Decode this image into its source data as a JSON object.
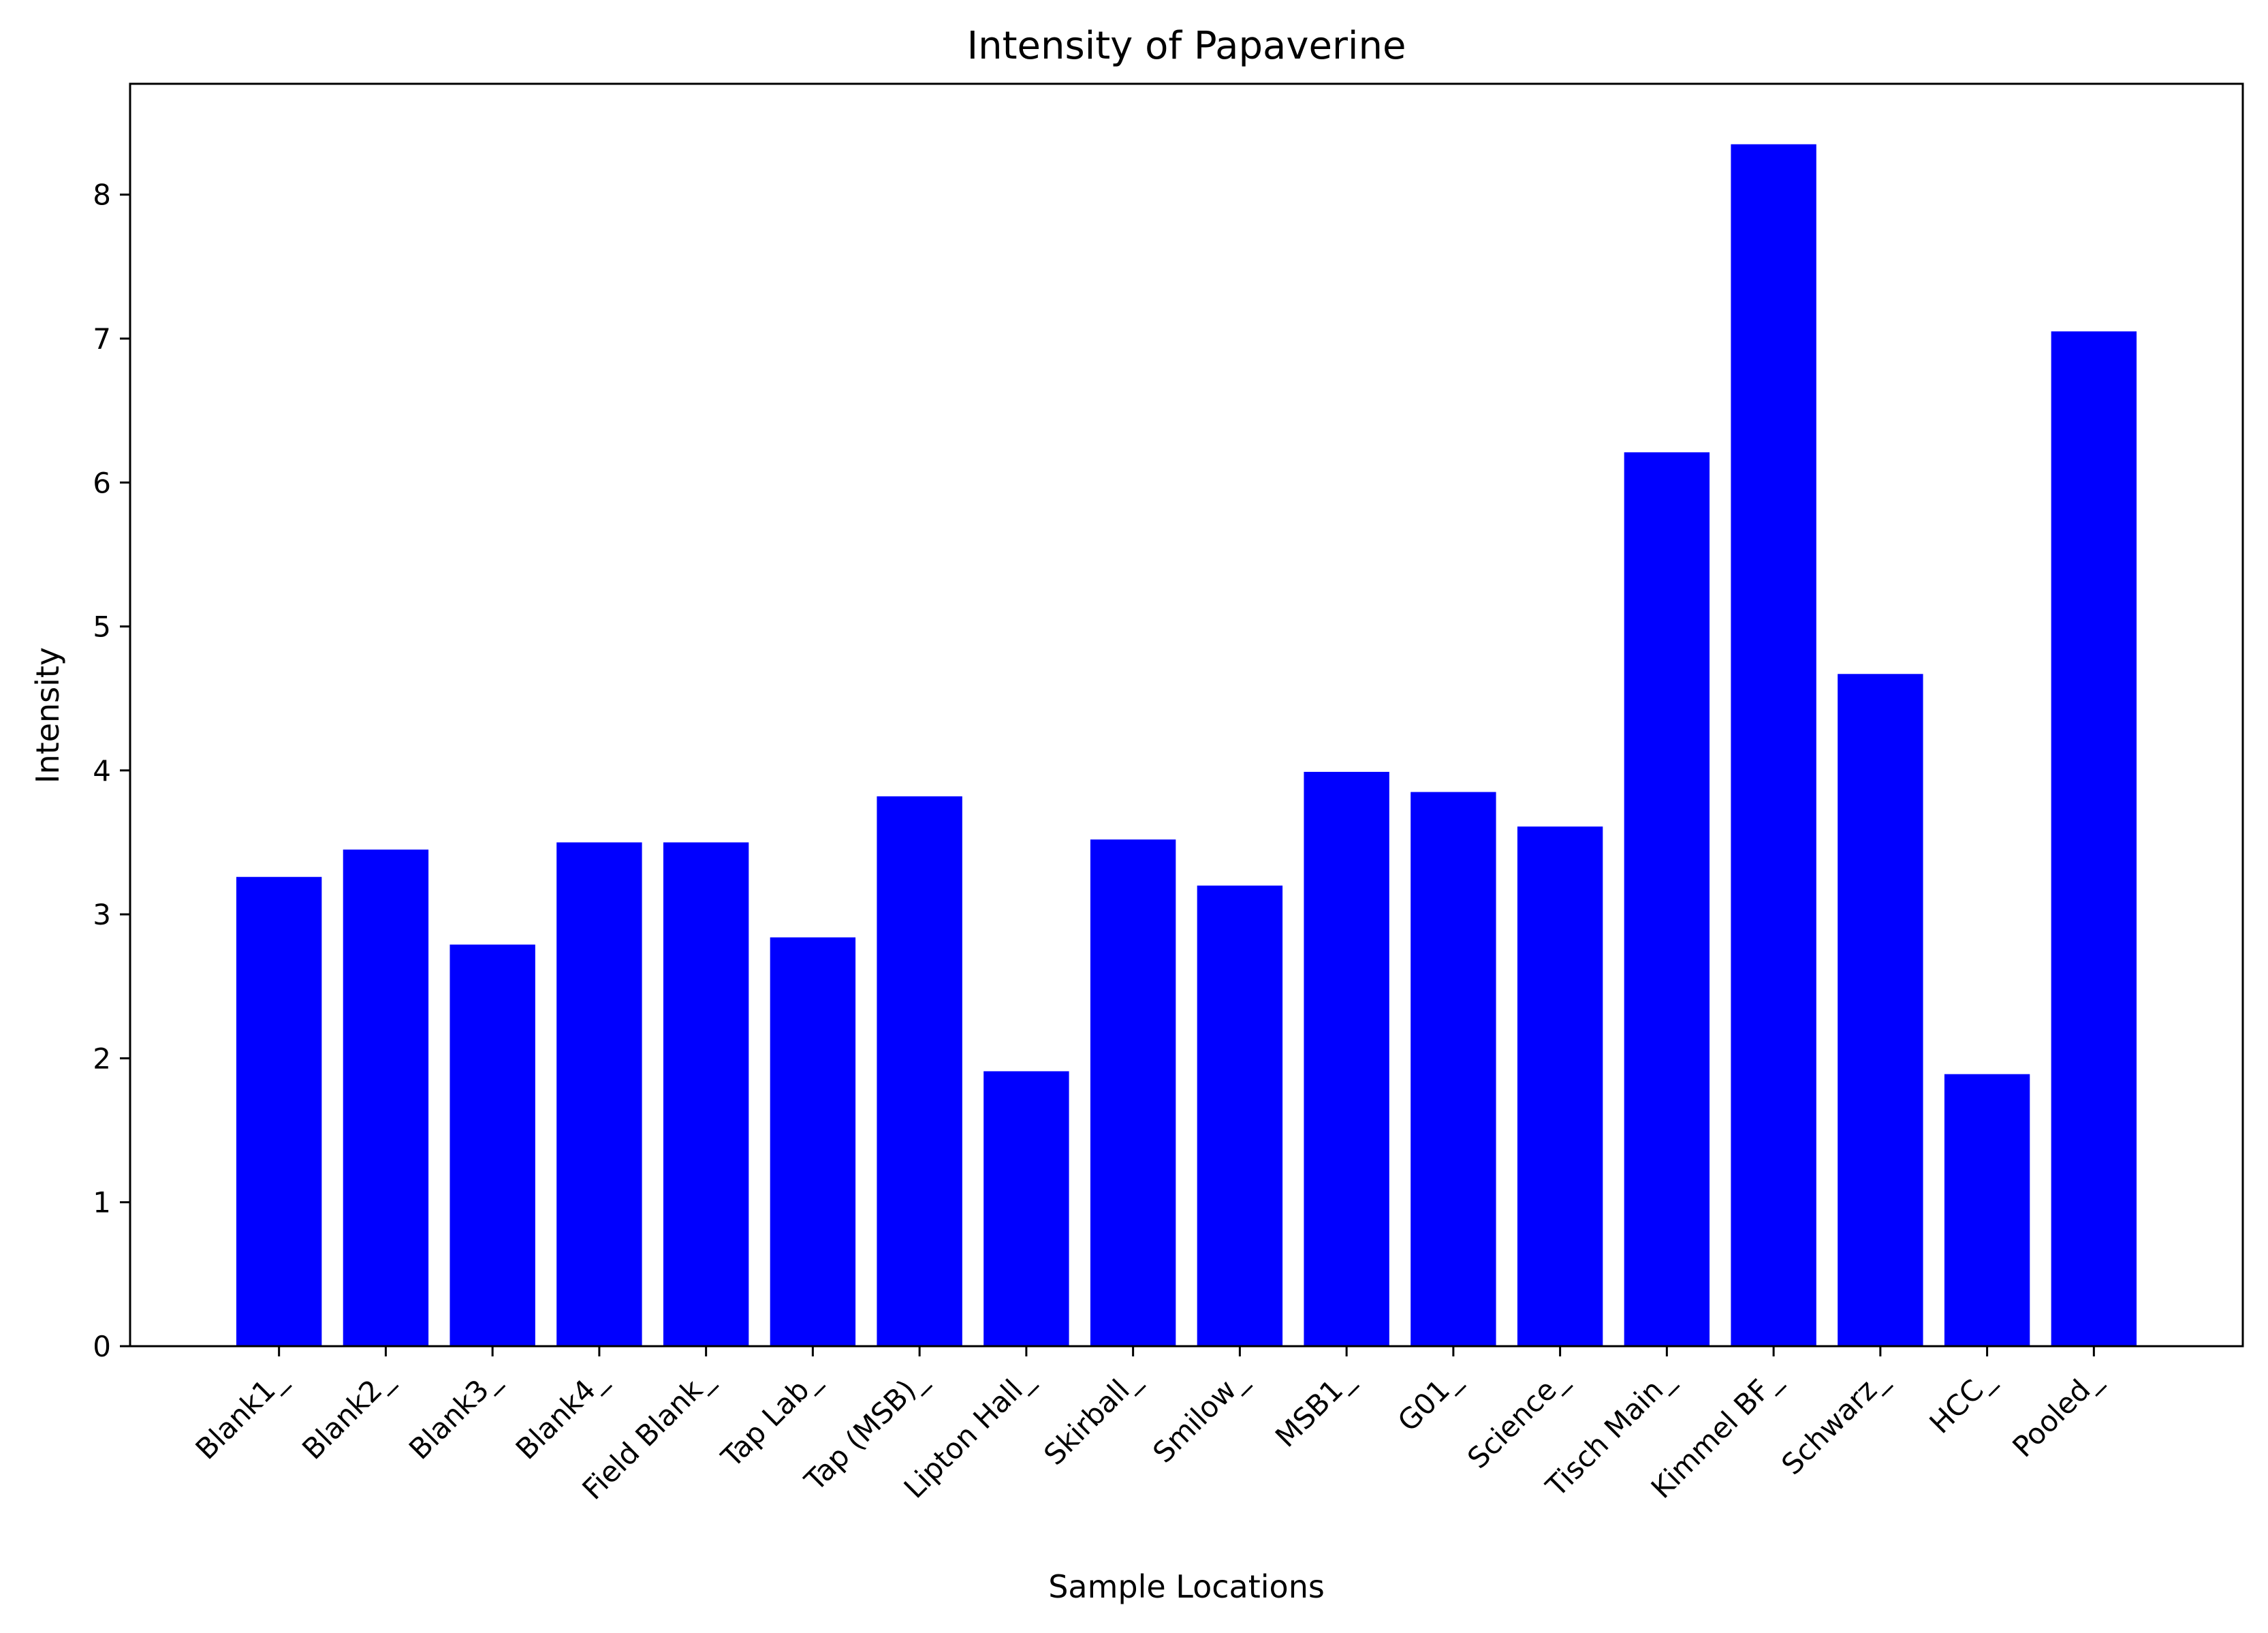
{
  "chart_data": {
    "type": "bar",
    "title": "Intensity of Papaverine",
    "xlabel": "Sample Locations",
    "ylabel": "Intensity",
    "categories": [
      "Blank1_",
      "Blank2_",
      "Blank3_",
      "Blank4_",
      "Field Blank_",
      "Tap Lab_",
      "Tap (MSB)_",
      "Lipton Hall_",
      "Skirball_",
      "Smilow_",
      "MSB1_",
      "G01_",
      "Science_",
      "Tisch Main_",
      "Kimmel BF_",
      "Schwarz_",
      "HCC_",
      "Pooled_"
    ],
    "values": [
      3.26,
      3.45,
      2.79,
      3.5,
      3.5,
      2.84,
      3.82,
      1.91,
      3.52,
      3.2,
      3.99,
      3.85,
      3.61,
      6.21,
      8.35,
      4.67,
      1.89,
      7.05
    ],
    "yticks": [
      0,
      1,
      2,
      3,
      4,
      5,
      6,
      7,
      8
    ],
    "ylim": [
      0,
      8.77
    ],
    "grid": false,
    "bar_color": "#0000ff",
    "axis_color": "#000000"
  }
}
